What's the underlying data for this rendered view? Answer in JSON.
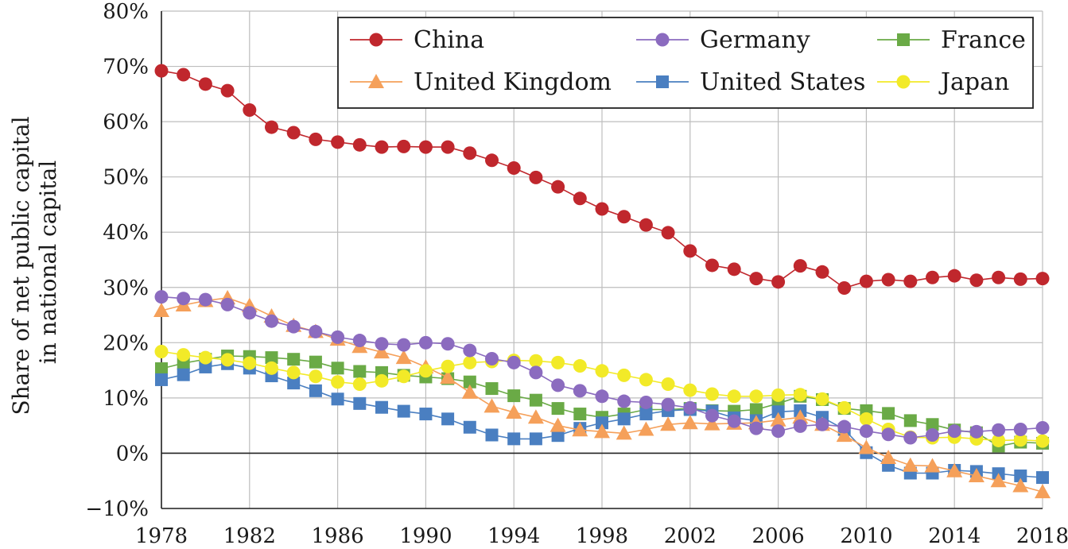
{
  "chart_data": {
    "type": "line",
    "title": "",
    "ylabel_lines": [
      "Share of net public capital",
      "in national capital"
    ],
    "xlabel": "",
    "xlim": [
      1978,
      2018
    ],
    "ylim": [
      -10,
      80
    ],
    "x_ticks": [
      1978,
      1982,
      1986,
      1990,
      1994,
      1998,
      2002,
      2006,
      2010,
      2014,
      2018
    ],
    "y_ticks": [
      -10,
      0,
      10,
      20,
      30,
      40,
      50,
      60,
      70,
      80
    ],
    "y_tick_labels": [
      "−10%",
      "0%",
      "10%",
      "20%",
      "30%",
      "40%",
      "50%",
      "60%",
      "70%",
      "80%"
    ],
    "grid": true,
    "legend_position": "top-right",
    "x": [
      1978,
      1979,
      1980,
      1981,
      1982,
      1983,
      1984,
      1985,
      1986,
      1987,
      1988,
      1989,
      1990,
      1991,
      1992,
      1993,
      1994,
      1995,
      1996,
      1997,
      1998,
      1999,
      2000,
      2001,
      2002,
      2003,
      2004,
      2005,
      2006,
      2007,
      2008,
      2009,
      2010,
      2011,
      2012,
      2013,
      2014,
      2015,
      2016,
      2017,
      2018
    ],
    "series": [
      {
        "name": "China",
        "color": "#c0272d",
        "marker": "circle",
        "values": [
          69.2,
          68.5,
          66.8,
          65.6,
          62.1,
          59.0,
          58.0,
          56.8,
          56.3,
          55.8,
          55.4,
          55.5,
          55.4,
          55.4,
          54.3,
          53.0,
          51.6,
          49.9,
          48.2,
          46.1,
          44.2,
          42.8,
          41.3,
          39.9,
          36.6,
          34.0,
          33.3,
          31.6,
          31.0,
          33.9,
          32.8,
          29.9,
          31.1,
          31.4,
          31.1,
          31.8,
          32.1,
          31.3,
          31.8,
          31.5,
          31.6
        ]
      },
      {
        "name": "Germany",
        "color": "#8b6bbf",
        "marker": "circle",
        "values": [
          28.3,
          28.0,
          27.8,
          26.9,
          25.4,
          23.9,
          22.9,
          22.0,
          21.0,
          20.4,
          19.8,
          19.6,
          20.0,
          19.8,
          18.6,
          17.1,
          16.4,
          14.6,
          12.3,
          11.3,
          10.3,
          9.4,
          9.2,
          8.8,
          8.2,
          6.8,
          5.8,
          4.5,
          4.0,
          4.9,
          5.2,
          4.8,
          4.0,
          3.4,
          2.8,
          3.3,
          4.0,
          3.9,
          4.2,
          4.3,
          4.6
        ]
      },
      {
        "name": "France",
        "color": "#6aaa46",
        "marker": "square",
        "values": [
          15.3,
          16.3,
          17.0,
          17.6,
          17.5,
          17.3,
          17.0,
          16.5,
          15.4,
          14.8,
          14.6,
          14.1,
          13.8,
          13.5,
          12.9,
          11.7,
          10.4,
          9.6,
          8.1,
          7.1,
          6.5,
          7.1,
          7.9,
          7.9,
          8.1,
          7.7,
          7.6,
          7.9,
          9.0,
          10.3,
          9.7,
          8.1,
          7.7,
          7.2,
          5.9,
          5.2,
          4.2,
          3.7,
          1.3,
          2.0,
          1.8
        ]
      },
      {
        "name": "United Kingdom",
        "color": "#f5a05a",
        "marker": "triangle",
        "values": [
          25.8,
          26.8,
          27.6,
          28.1,
          26.7,
          24.8,
          23.1,
          22.0,
          20.6,
          19.3,
          18.3,
          17.3,
          15.6,
          13.7,
          11.0,
          8.5,
          7.4,
          6.5,
          5.0,
          4.2,
          3.9,
          3.6,
          4.3,
          5.2,
          5.5,
          5.3,
          5.4,
          5.5,
          6.0,
          6.5,
          5.2,
          3.2,
          1.0,
          -0.8,
          -2.2,
          -2.3,
          -3.2,
          -4.1,
          -5.0,
          -5.9,
          -7.0
        ]
      },
      {
        "name": "United States",
        "color": "#4a7fc1",
        "marker": "square",
        "values": [
          13.3,
          14.2,
          15.6,
          16.2,
          15.4,
          14.0,
          12.7,
          11.3,
          9.8,
          9.0,
          8.3,
          7.6,
          7.1,
          6.2,
          4.7,
          3.3,
          2.6,
          2.6,
          3.2,
          4.5,
          5.5,
          6.2,
          7.1,
          7.7,
          7.9,
          7.6,
          6.4,
          5.9,
          7.5,
          7.7,
          6.5,
          4.3,
          0.1,
          -2.2,
          -3.6,
          -3.6,
          -3.1,
          -3.3,
          -3.7,
          -4.1,
          -4.4
        ]
      },
      {
        "name": "Japan",
        "color": "#f2ea28",
        "marker": "circle",
        "values": [
          18.4,
          17.8,
          17.3,
          16.9,
          16.3,
          15.4,
          14.6,
          13.9,
          12.9,
          12.5,
          13.1,
          13.9,
          14.9,
          15.7,
          16.4,
          16.6,
          16.8,
          16.7,
          16.4,
          15.8,
          14.9,
          14.1,
          13.3,
          12.5,
          11.4,
          10.7,
          10.3,
          10.3,
          10.5,
          10.6,
          9.8,
          8.2,
          6.2,
          4.3,
          2.9,
          2.8,
          2.9,
          2.6,
          2.3,
          2.4,
          2.2
        ]
      }
    ]
  }
}
